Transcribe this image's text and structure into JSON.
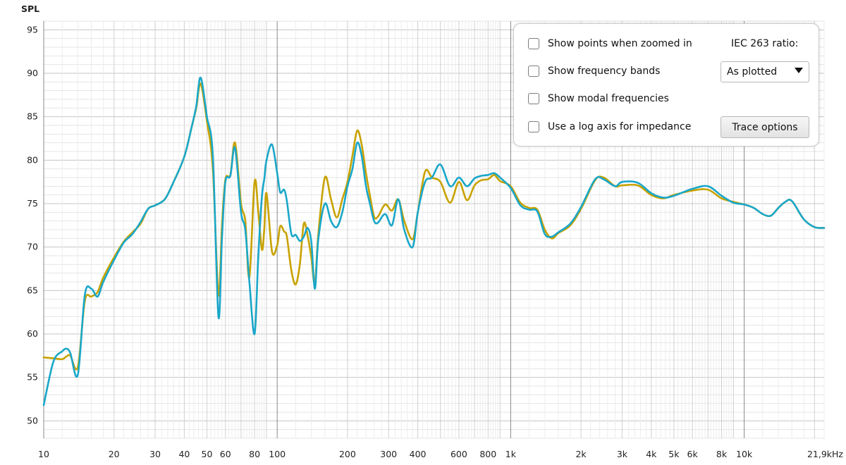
{
  "options_panel": {
    "checkboxes": [
      {
        "label": "Show points when zoomed in",
        "checked": false
      },
      {
        "label": "Show frequency bands",
        "checked": false
      },
      {
        "label": "Show modal frequencies",
        "checked": false
      },
      {
        "label": "Use a log axis for impedance",
        "checked": false
      }
    ],
    "iec_label": "IEC 263 ratio:",
    "ratio_select_value": "As plotted",
    "trace_options_label": "Trace options"
  },
  "chart_data": {
    "type": "line",
    "ylabel": "SPL",
    "xlabel": "",
    "x_scale": "log",
    "xlim": [
      10,
      22000
    ],
    "ylim": [
      48,
      96
    ],
    "grid": true,
    "y_ticks": [
      50,
      55,
      60,
      65,
      70,
      75,
      80,
      85,
      90,
      95
    ],
    "x_ticks": [
      {
        "value": 10,
        "label": "10"
      },
      {
        "value": 20,
        "label": "20"
      },
      {
        "value": 30,
        "label": "30"
      },
      {
        "value": 40,
        "label": "40"
      },
      {
        "value": 50,
        "label": "50"
      },
      {
        "value": 60,
        "label": "60"
      },
      {
        "value": 80,
        "label": "80"
      },
      {
        "value": 100,
        "label": "100"
      },
      {
        "value": 200,
        "label": "200"
      },
      {
        "value": 300,
        "label": "300"
      },
      {
        "value": 400,
        "label": "400"
      },
      {
        "value": 600,
        "label": "600"
      },
      {
        "value": 800,
        "label": "800"
      },
      {
        "value": 1000,
        "label": "1k"
      },
      {
        "value": 2000,
        "label": "2k"
      },
      {
        "value": 3000,
        "label": "3k"
      },
      {
        "value": 4000,
        "label": "4k"
      },
      {
        "value": 5000,
        "label": "5k"
      },
      {
        "value": 6000,
        "label": "6k"
      },
      {
        "value": 8000,
        "label": "8k"
      },
      {
        "value": 10000,
        "label": "10k"
      },
      {
        "value": 21900,
        "label": "21,9kHz"
      }
    ],
    "series": [
      {
        "color": "#c8a200",
        "x": [
          10,
          11,
          12,
          12.5,
          13,
          14,
          15,
          16,
          17,
          18,
          20,
          22,
          24,
          26,
          28,
          30,
          33,
          36,
          40,
          43,
          45,
          47,
          50,
          53,
          56,
          58,
          60,
          63,
          66,
          70,
          73,
          76,
          80,
          83,
          86,
          88,
          90,
          95,
          100,
          103,
          107,
          110,
          115,
          120,
          125,
          130,
          135,
          140,
          145,
          150,
          160,
          170,
          180,
          190,
          200,
          210,
          220,
          230,
          240,
          250,
          260,
          270,
          290,
          310,
          330,
          350,
          380,
          400,
          430,
          460,
          500,
          550,
          600,
          650,
          700,
          750,
          800,
          850,
          900,
          1000,
          1100,
          1200,
          1300,
          1400,
          1500,
          1600,
          1800,
          2000,
          2300,
          2500,
          2800,
          3000,
          3500,
          4000,
          4500,
          5000,
          6000,
          7000,
          8000,
          9000,
          10000,
          11000,
          12000,
          13000,
          14000,
          15000,
          16000,
          18000,
          20000,
          22000
        ],
        "y": [
          57.3,
          57.2,
          57.1,
          57.4,
          57.5,
          56.2,
          63.8,
          64.3,
          64.8,
          66.5,
          68.8,
          70.6,
          71.7,
          72.7,
          74.4,
          74.8,
          75.5,
          77.5,
          80.4,
          83.8,
          86,
          88.8,
          84.5,
          79,
          64.5,
          72.5,
          77.8,
          78.3,
          82,
          75,
          73,
          66.5,
          77.5,
          74,
          69.7,
          72,
          76.2,
          69.5,
          70.2,
          72.4,
          71.8,
          71.2,
          67.3,
          65.7,
          68,
          72.7,
          71.3,
          68.8,
          65.8,
          71.5,
          78,
          75.5,
          73.4,
          75.5,
          77.5,
          80.5,
          83.4,
          81.8,
          78.5,
          75.8,
          73.5,
          73.5,
          74.9,
          74.2,
          75.5,
          73,
          70.9,
          74,
          78.7,
          78,
          77.5,
          75.1,
          77.5,
          75.4,
          77.1,
          77.7,
          77.8,
          78.3,
          77.6,
          77,
          75.1,
          74.5,
          74.3,
          72,
          71,
          71.6,
          72.5,
          74.4,
          77.7,
          78,
          77,
          77.1,
          77.1,
          76,
          75.6,
          76,
          76.5,
          76.6,
          75.6,
          75.2,
          74.9,
          74.5,
          73.8,
          73.6,
          74.5,
          75.2,
          75.3,
          73.2,
          72.3,
          72.2
        ]
      },
      {
        "color": "#1aa7c9",
        "x": [
          10,
          11,
          12,
          12.5,
          13,
          14,
          15,
          16,
          17,
          18,
          20,
          22,
          24,
          26,
          28,
          30,
          33,
          36,
          40,
          43,
          45,
          47,
          50,
          53,
          56,
          58,
          60,
          63,
          66,
          70,
          73,
          76,
          80,
          83,
          86,
          88,
          90,
          95,
          100,
          103,
          107,
          110,
          115,
          120,
          125,
          130,
          135,
          140,
          145,
          150,
          160,
          170,
          180,
          190,
          200,
          210,
          220,
          230,
          240,
          250,
          260,
          270,
          290,
          310,
          330,
          350,
          380,
          400,
          430,
          460,
          500,
          550,
          600,
          650,
          700,
          750,
          800,
          850,
          900,
          1000,
          1100,
          1200,
          1300,
          1400,
          1500,
          1600,
          1800,
          2000,
          2300,
          2500,
          2800,
          3000,
          3500,
          4000,
          4500,
          5000,
          6000,
          7000,
          8000,
          9000,
          10000,
          11000,
          12000,
          13000,
          14000,
          15000,
          16000,
          18000,
          20000,
          22000
        ],
        "y": [
          51.8,
          56.8,
          58,
          58.3,
          57.8,
          55.3,
          64.5,
          65.2,
          64.3,
          66,
          68.5,
          70.5,
          71.5,
          72.9,
          74.4,
          74.8,
          75.5,
          77.5,
          80.4,
          83.8,
          86.2,
          89.5,
          85,
          80.5,
          62,
          71,
          77.5,
          78.2,
          81.4,
          74,
          72,
          66,
          60,
          69,
          75.8,
          77.8,
          80,
          81.8,
          78.5,
          76.3,
          76.6,
          75.3,
          71.5,
          71.4,
          70.7,
          71.2,
          72.2,
          70.6,
          65.2,
          70.9,
          75,
          73,
          72.3,
          74,
          77,
          79,
          82,
          80.5,
          77,
          74.9,
          73,
          72.8,
          73.8,
          72.5,
          75.5,
          72,
          70,
          74,
          77.5,
          78,
          79.5,
          77,
          78,
          77,
          77.9,
          78.2,
          78.3,
          78.5,
          78,
          76.8,
          74.8,
          74.3,
          74.1,
          71.5,
          71.2,
          71.7,
          72.7,
          74.6,
          77.8,
          77.8,
          77,
          77.5,
          77.4,
          76.2,
          75.7,
          75.9,
          76.7,
          77,
          75.9,
          75.1,
          74.9,
          74.5,
          73.8,
          73.6,
          74.5,
          75.2,
          75.3,
          73.2,
          72.3,
          72.2
        ]
      }
    ]
  }
}
